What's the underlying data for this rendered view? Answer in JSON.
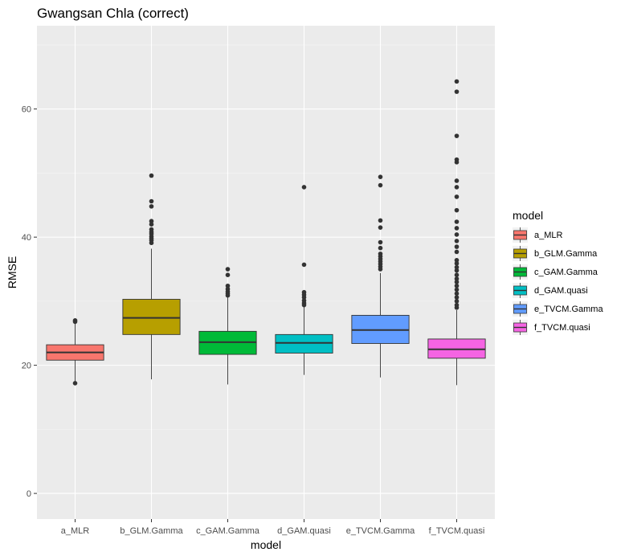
{
  "chart_data": {
    "type": "box",
    "title": "Gwangsan Chla (correct)",
    "xlabel": "model",
    "ylabel": "RMSE",
    "ylim": [
      -4,
      73
    ],
    "yticks": [
      0,
      20,
      40,
      60
    ],
    "ytick_labels": [
      "0",
      "20",
      "40",
      "60"
    ],
    "grid": true,
    "legend_title": "model",
    "legend_position": "right",
    "categories": [
      "a_MLR",
      "b_GLM.Gamma",
      "c_GAM.Gamma",
      "d_GAM.quasi",
      "e_TVCM.Gamma",
      "f_TVCM.quasi"
    ],
    "boxes": [
      {
        "name": "a_MLR",
        "color": "#F8766D",
        "min": 17.2,
        "q1": 20.8,
        "median": 22.0,
        "q3": 23.2,
        "max": 26.8,
        "outliers": [
          27.0,
          26.8,
          17.2
        ]
      },
      {
        "name": "b_GLM.Gamma",
        "color": "#B79F00",
        "min": 17.8,
        "q1": 24.8,
        "median": 27.4,
        "q3": 30.3,
        "max": 38.2,
        "outliers": [
          49.6,
          45.6,
          44.8,
          42.5,
          42.0,
          41.2,
          40.8,
          40.5,
          40.1,
          39.8,
          39.5,
          39.1
        ]
      },
      {
        "name": "c_GAM.Gamma",
        "color": "#00BA38",
        "min": 17.0,
        "q1": 21.7,
        "median": 23.6,
        "q3": 25.3,
        "max": 30.6,
        "outliers": [
          35.0,
          34.1,
          32.4,
          31.9,
          31.5,
          31.2,
          30.9
        ]
      },
      {
        "name": "d_GAM.quasi",
        "color": "#00BFC4",
        "min": 18.5,
        "q1": 21.9,
        "median": 23.5,
        "q3": 24.8,
        "max": 29.1,
        "outliers": [
          47.8,
          35.7,
          31.4,
          31.0,
          30.6,
          30.1,
          29.7,
          29.4
        ]
      },
      {
        "name": "e_TVCM.Gamma",
        "color": "#619CFF",
        "min": 18.1,
        "q1": 23.4,
        "median": 25.5,
        "q3": 27.8,
        "max": 34.4,
        "outliers": [
          49.4,
          48.1,
          42.6,
          41.5,
          39.2,
          38.3,
          37.4,
          37.0,
          36.6,
          36.2,
          35.8,
          35.4,
          35.0
        ]
      },
      {
        "name": "f_TVCM.quasi",
        "color": "#F564E3",
        "min": 16.9,
        "q1": 21.1,
        "median": 22.5,
        "q3": 24.1,
        "max": 28.6,
        "outliers": [
          64.3,
          62.7,
          55.8,
          52.1,
          51.7,
          48.8,
          47.8,
          46.3,
          44.2,
          42.4,
          41.4,
          40.4,
          39.4,
          38.5,
          37.7,
          36.4,
          35.9,
          35.3,
          34.8,
          34.1,
          33.5,
          33.0,
          32.4,
          31.8,
          31.2,
          30.6,
          30.0,
          29.4,
          29.0
        ]
      }
    ]
  },
  "colors": {
    "panel_bg": "#EBEBEB",
    "grid_major": "#FFFFFF",
    "grid_minor": "#F5F5F5",
    "box_line": "#333333",
    "point": "#333333"
  }
}
